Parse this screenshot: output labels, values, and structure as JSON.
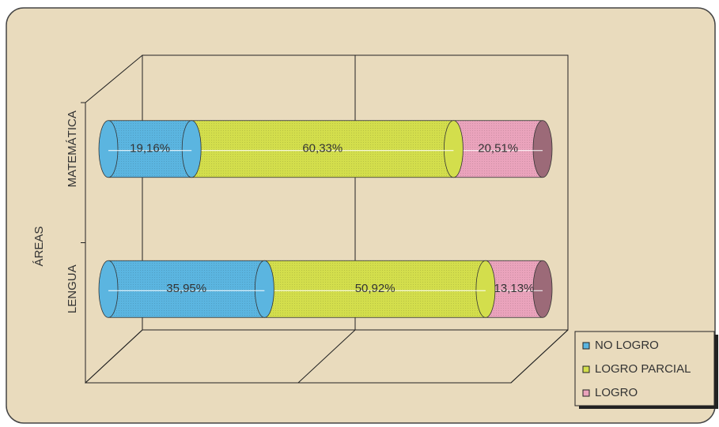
{
  "chart_data": {
    "type": "bar",
    "orientation": "horizontal",
    "stacked": true,
    "ylabel": "ÁREAS",
    "categories": [
      "LENGUA",
      "MATEMÁTICA"
    ],
    "series": [
      {
        "name": "NO LOGRO",
        "color": "#5bb5e0",
        "values": [
          35.95,
          19.16
        ],
        "value_labels": [
          "35,95%",
          "19,16%"
        ]
      },
      {
        "name": "LOGRO PARCIAL",
        "color": "#d3de4c",
        "values": [
          50.92,
          60.33
        ],
        "value_labels": [
          "50,92%",
          "60,33%"
        ]
      },
      {
        "name": "LOGRO",
        "color": "#eaa3bc",
        "values": [
          13.13,
          20.51
        ],
        "value_labels": [
          "13,13%",
          "20,51%"
        ]
      }
    ],
    "xlim": [
      0,
      100
    ],
    "xticks": [
      0,
      50,
      100
    ],
    "grid": true,
    "legend": "lower right"
  }
}
